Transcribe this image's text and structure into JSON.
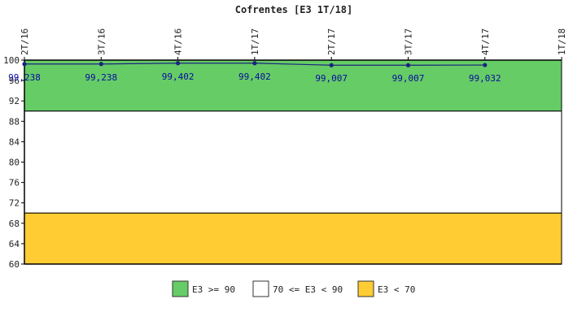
{
  "chart_data": {
    "type": "line",
    "title": "Cofrentes [E3 1T/18]",
    "xlabel": "",
    "ylabel": "",
    "categories": [
      "2T/16",
      "3T/16",
      "4T/16",
      "1T/17",
      "2T/17",
      "3T/17",
      "4T/17",
      "1T/18"
    ],
    "series": [
      {
        "values": [
          99.238,
          99.238,
          99.402,
          99.402,
          99.007,
          99.007,
          99.032,
          null
        ],
        "labels": [
          "99,238",
          "99,238",
          "99,402",
          "99,402",
          "99,007",
          "99,007",
          "99,032",
          ""
        ],
        "color": "#1a237e"
      }
    ],
    "ylim": [
      60,
      100
    ],
    "yticks": [
      100,
      96,
      92,
      88,
      84,
      80,
      76,
      72,
      68,
      64,
      60
    ],
    "bands": [
      {
        "from": 90,
        "to": 100,
        "color": "#66cc66",
        "label": "E3 >= 90"
      },
      {
        "from": 70,
        "to": 90,
        "color": "#ffffff",
        "label": "70 <= E3 < 90"
      },
      {
        "from": 60,
        "to": 70,
        "color": "#ffcc33",
        "label": "E3 < 70"
      }
    ],
    "legend_position": "bottom",
    "grid": false
  }
}
